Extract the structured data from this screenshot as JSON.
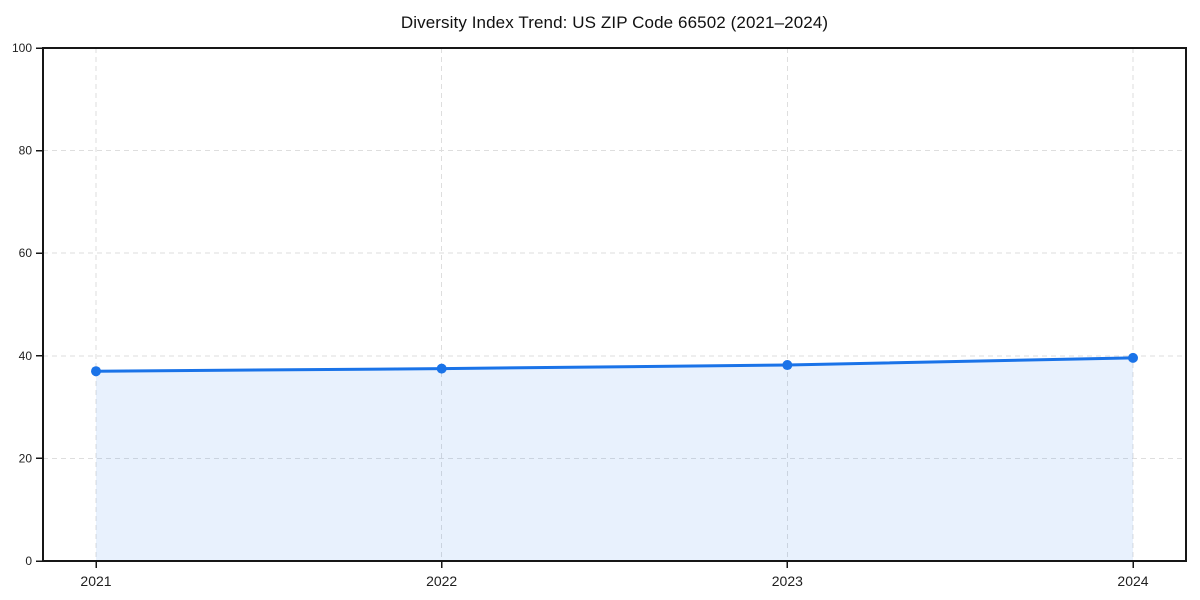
{
  "chart_data": {
    "type": "area",
    "title": "Diversity Index Trend: US ZIP Code 66502 (2021–2024)",
    "categories": [
      "2021",
      "2022",
      "2023",
      "2024"
    ],
    "values": [
      37.0,
      37.5,
      38.2,
      39.6
    ],
    "series": [
      {
        "name": "Diversity Index",
        "values": [
          37.0,
          37.5,
          38.2,
          39.6
        ]
      }
    ],
    "xlabel": "",
    "ylabel": "",
    "ylim": [
      0,
      100
    ],
    "y_ticks": [
      0,
      20,
      40,
      60,
      80,
      100
    ],
    "y_tick_labels": [
      "0",
      "20",
      "40",
      "60",
      "80",
      "100"
    ],
    "grid": true,
    "grid_style": "dashed",
    "legend_position": "none",
    "marker": "circle",
    "colors": {
      "line": "#1a73e8",
      "fill": "#1a73e8",
      "fill_opacity": 0.1,
      "grid": "#dedede",
      "axis": "#161616",
      "text": "#1f1f1f",
      "title": "#111111",
      "background": "#ffffff"
    }
  }
}
